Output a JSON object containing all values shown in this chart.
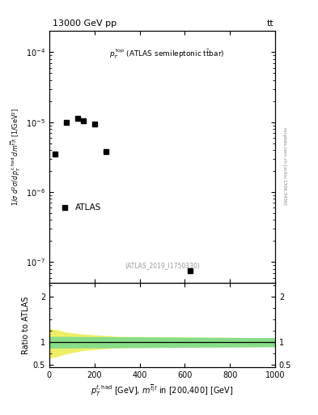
{
  "title_left": "13000 GeV pp",
  "title_right": "tt",
  "ref_label": "(ATLAS_2019_I1750330)",
  "atlas_label": "ATLAS",
  "ylabel_ratio": "Ratio to ATLAS",
  "side_label": "mcplots.cern.ch [arXiv:1306.3436]",
  "data_x": [
    25,
    75,
    125,
    150,
    200,
    250,
    625
  ],
  "data_y": [
    3.5e-06,
    1e-05,
    1.15e-05,
    1.05e-05,
    9.5e-06,
    3.8e-06,
    7.5e-08
  ],
  "ylim_main": [
    5e-08,
    0.0002
  ],
  "xlim": [
    0,
    1000
  ],
  "ylim_ratio": [
    0.45,
    2.3
  ],
  "green_band_xpts": [
    0,
    1000
  ],
  "green_band_upper": [
    1.13,
    1.1
  ],
  "green_band_lower": [
    0.87,
    0.9
  ],
  "yellow_band_xpts": [
    0,
    30,
    80,
    150,
    300,
    500,
    700,
    1000
  ],
  "yellow_band_upper": [
    1.3,
    1.28,
    1.22,
    1.18,
    1.13,
    1.12,
    1.11,
    1.1
  ],
  "yellow_band_lower": [
    0.65,
    0.68,
    0.75,
    0.82,
    0.88,
    0.89,
    0.9,
    0.91
  ],
  "ratio_line": 1.0,
  "marker_color": "black",
  "marker_style": "s",
  "marker_size": 4.5,
  "green_color": "#88DD88",
  "yellow_color": "#EEEE66",
  "line_color": "black",
  "bg_color": "white",
  "ref_color": "#999999",
  "tick_labelsize": 7,
  "axis_labelsize": 7,
  "title_fontsize": 8
}
